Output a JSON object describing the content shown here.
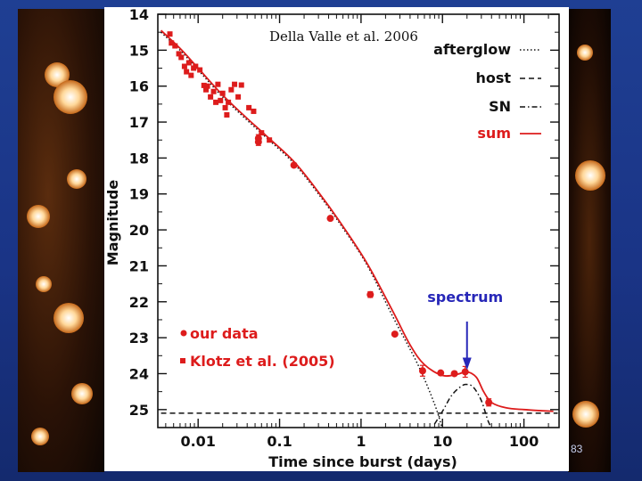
{
  "slide": {
    "page_number": "83",
    "background_color": "#1f3f93"
  },
  "chart_data": {
    "type": "line",
    "citation": "Della Valle et al. 2006",
    "xlabel": "Time since burst (days)",
    "ylabel": "Magnitude",
    "x_scale": "log",
    "xlim": [
      0.0032,
      270
    ],
    "ylim": [
      25.5,
      14
    ],
    "x_ticks": [
      {
        "value": 0.01,
        "label": "0.01"
      },
      {
        "value": 0.1,
        "label": "0.1"
      },
      {
        "value": 1,
        "label": "1"
      },
      {
        "value": 10,
        "label": "10"
      },
      {
        "value": 100,
        "label": "100"
      }
    ],
    "y_ticks": [
      {
        "value": 14,
        "label": "14"
      },
      {
        "value": 15,
        "label": "15"
      },
      {
        "value": 16,
        "label": "16"
      },
      {
        "value": 17,
        "label": "17"
      },
      {
        "value": 18,
        "label": "18"
      },
      {
        "value": 19,
        "label": "19"
      },
      {
        "value": 20,
        "label": "20"
      },
      {
        "value": 21,
        "label": "21"
      },
      {
        "value": 22,
        "label": "22"
      },
      {
        "value": 23,
        "label": "23"
      },
      {
        "value": 24,
        "label": "24"
      },
      {
        "value": 25,
        "label": "25"
      }
    ],
    "model_legend": [
      {
        "label": "afterglow",
        "style": "dotted",
        "color": "#111111"
      },
      {
        "label": "host",
        "style": "dashed",
        "color": "#111111"
      },
      {
        "label": "SN",
        "style": "dashdot",
        "color": "#111111"
      },
      {
        "label": "sum",
        "style": "solid",
        "color": "#dd1c1c"
      }
    ],
    "data_legend": [
      {
        "marker": "circle",
        "label": "our data",
        "color": "#dd1c1c"
      },
      {
        "marker": "square",
        "label": "Klotz et al. (2005)",
        "color": "#dd1c1c"
      }
    ],
    "annotation": {
      "text": "spectrum",
      "x": 20,
      "y_text": 22.0,
      "y_arrow_start": 22.55,
      "y_arrow_end": 23.9,
      "color": "#2727b8"
    },
    "series": [
      {
        "name": "afterglow",
        "style": "dotted",
        "color": "#111111",
        "points": [
          [
            0.0035,
            14.5
          ],
          [
            0.006,
            15.0
          ],
          [
            0.01,
            15.55
          ],
          [
            0.02,
            16.3
          ],
          [
            0.04,
            16.95
          ],
          [
            0.07,
            17.45
          ],
          [
            0.15,
            18.15
          ],
          [
            0.3,
            19.0
          ],
          [
            0.6,
            19.95
          ],
          [
            1.2,
            21.0
          ],
          [
            2.5,
            22.45
          ],
          [
            5,
            23.75
          ],
          [
            8,
            24.85
          ],
          [
            10,
            25.55
          ]
        ]
      },
      {
        "name": "host",
        "style": "dashed",
        "color": "#111111",
        "points": [
          [
            0.0035,
            25.1
          ],
          [
            260,
            25.1
          ]
        ]
      },
      {
        "name": "SN",
        "style": "dashdot",
        "color": "#111111",
        "points": [
          [
            8,
            25.4
          ],
          [
            10,
            25.05
          ],
          [
            13,
            24.6
          ],
          [
            17,
            24.35
          ],
          [
            20,
            24.3
          ],
          [
            24,
            24.38
          ],
          [
            30,
            24.75
          ],
          [
            36,
            25.3
          ],
          [
            40,
            25.5
          ]
        ]
      },
      {
        "name": "sum",
        "style": "solid",
        "color": "#dd1c1c",
        "points": [
          [
            0.0035,
            14.45
          ],
          [
            0.006,
            14.95
          ],
          [
            0.01,
            15.5
          ],
          [
            0.02,
            16.25
          ],
          [
            0.04,
            16.9
          ],
          [
            0.07,
            17.4
          ],
          [
            0.15,
            18.1
          ],
          [
            0.3,
            18.95
          ],
          [
            0.6,
            19.9
          ],
          [
            1.2,
            20.95
          ],
          [
            2.5,
            22.3
          ],
          [
            4,
            23.2
          ],
          [
            6,
            23.75
          ],
          [
            10,
            24.05
          ],
          [
            15,
            24.02
          ],
          [
            20,
            23.95
          ],
          [
            26,
            24.1
          ],
          [
            32,
            24.5
          ],
          [
            40,
            24.8
          ],
          [
            60,
            24.95
          ],
          [
            100,
            25.0
          ],
          [
            230,
            25.05
          ]
        ]
      }
    ],
    "our_data": [
      {
        "x": 0.055,
        "y": 17.45,
        "err": 0.1
      },
      {
        "x": 0.055,
        "y": 17.55,
        "err": 0.1
      },
      {
        "x": 0.15,
        "y": 18.2,
        "err": 0.05
      },
      {
        "x": 0.42,
        "y": 19.68,
        "err": 0.05
      },
      {
        "x": 1.3,
        "y": 21.8,
        "err": 0.08
      },
      {
        "x": 2.6,
        "y": 22.9,
        "err": 0.05
      },
      {
        "x": 5.7,
        "y": 23.92,
        "err": 0.15
      },
      {
        "x": 9.5,
        "y": 23.98,
        "err": 0.05
      },
      {
        "x": 14,
        "y": 24.0,
        "err": 0.05
      },
      {
        "x": 19,
        "y": 23.95,
        "err": 0.15
      },
      {
        "x": 37,
        "y": 24.8,
        "err": 0.1
      }
    ],
    "klotz_data": [
      {
        "x": 0.0045,
        "y": 14.55
      },
      {
        "x": 0.0047,
        "y": 14.8
      },
      {
        "x": 0.0052,
        "y": 14.88
      },
      {
        "x": 0.0058,
        "y": 15.1
      },
      {
        "x": 0.0062,
        "y": 15.2
      },
      {
        "x": 0.0068,
        "y": 15.45
      },
      {
        "x": 0.0072,
        "y": 15.6
      },
      {
        "x": 0.0077,
        "y": 15.35
      },
      {
        "x": 0.0082,
        "y": 15.7
      },
      {
        "x": 0.0088,
        "y": 15.5
      },
      {
        "x": 0.0093,
        "y": 15.45
      },
      {
        "x": 0.0105,
        "y": 15.55
      },
      {
        "x": 0.0118,
        "y": 15.98
      },
      {
        "x": 0.0125,
        "y": 16.1
      },
      {
        "x": 0.013,
        "y": 16.0
      },
      {
        "x": 0.0142,
        "y": 16.3
      },
      {
        "x": 0.0155,
        "y": 16.15
      },
      {
        "x": 0.0165,
        "y": 16.45
      },
      {
        "x": 0.0175,
        "y": 15.95
      },
      {
        "x": 0.0188,
        "y": 16.4
      },
      {
        "x": 0.02,
        "y": 16.2
      },
      {
        "x": 0.0215,
        "y": 16.6
      },
      {
        "x": 0.0225,
        "y": 16.8
      },
      {
        "x": 0.0235,
        "y": 16.45
      },
      {
        "x": 0.0255,
        "y": 16.1
      },
      {
        "x": 0.028,
        "y": 15.95
      },
      {
        "x": 0.031,
        "y": 16.3
      },
      {
        "x": 0.034,
        "y": 15.97
      },
      {
        "x": 0.042,
        "y": 16.6
      },
      {
        "x": 0.048,
        "y": 16.7
      },
      {
        "x": 0.06,
        "y": 17.3
      },
      {
        "x": 0.075,
        "y": 17.5
      }
    ],
    "grid": false
  }
}
